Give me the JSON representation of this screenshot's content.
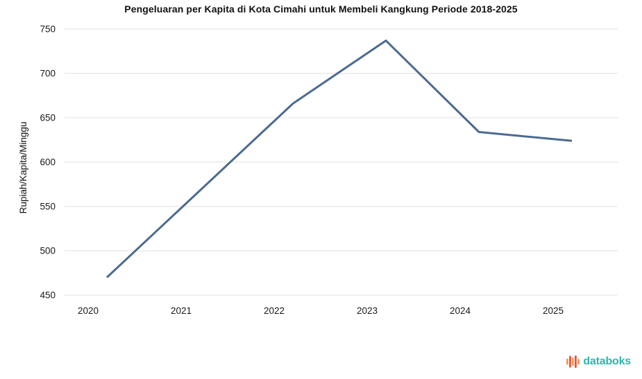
{
  "title": "Pengeluaran per Kapita di Kota Cimahi untuk Membeli Kangkung Periode 2018-2025",
  "chart_data": {
    "type": "line",
    "title": "Pengeluaran per Kapita di Kota Cimahi untuk Membeli Kangkung Periode 2018-2025",
    "x": [
      "2020",
      "2021",
      "2022",
      "2023",
      "2024",
      "2025"
    ],
    "series": [
      {
        "name": "Pengeluaran per Kapita",
        "values": [
          470,
          568,
          666,
          737,
          634,
          624
        ]
      }
    ],
    "xlabel": "",
    "ylabel": "Rupiah/Kapita/Minggu",
    "ylim": [
      450,
      750
    ],
    "yticks": [
      450,
      500,
      550,
      600,
      650,
      700,
      750
    ],
    "grid": "horizontal-only",
    "legend": "none",
    "line_color": "#4a6a91",
    "gridline_color": "#e2e2e2",
    "tick_label_color": "#1a1a1a"
  },
  "branding": {
    "logo_text": "databoks",
    "logo_text_color": "#2eb5ac",
    "logo_icon": "bar-waveform-icon",
    "logo_icon_colors": [
      "#f1975c",
      "#e95436"
    ],
    "logo_icon_bar_heights": [
      9,
      17,
      12,
      18,
      8
    ]
  }
}
